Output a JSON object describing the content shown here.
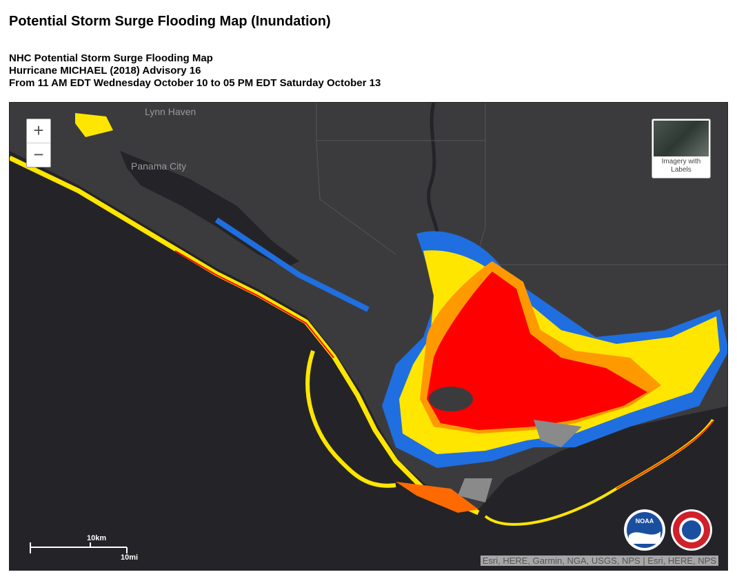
{
  "header": {
    "title": "Potential Storm Surge Flooding Map (Inundation)",
    "lines": [
      "NHC Potential Storm Surge Flooding Map",
      "Hurricane MICHAEL (2018) Advisory 16",
      "From 11 AM EDT Wednesday October 10 to 05 PM EDT Saturday October 13"
    ]
  },
  "map": {
    "place_labels": [
      "Lynn Haven",
      "Panama City"
    ],
    "zoom_in": "+",
    "zoom_out": "−",
    "basemap_toggle": "Imagery with Labels",
    "scale": {
      "km": "10km",
      "mi": "10mi"
    },
    "attribution": "Esri, HERE, Garmin, NGA, USGS, NPS | Esri, HERE, NPS",
    "logos": [
      "NOAA"
    ]
  }
}
